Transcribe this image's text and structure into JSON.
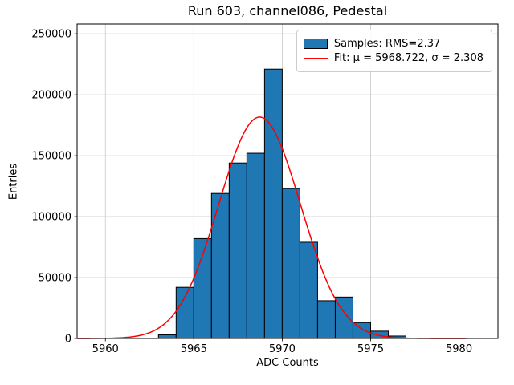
{
  "title": "Run 603, channel086, Pedestal",
  "chart_data": {
    "type": "bar",
    "subtype": "histogram",
    "title": "Run 603, channel086, Pedestal",
    "xlabel": "ADC Counts",
    "ylabel": "Entries",
    "xlim": [
      5958.4,
      5982.2
    ],
    "ylim": [
      0,
      258000
    ],
    "xticks": [
      5960,
      5965,
      5970,
      5975,
      5980
    ],
    "yticks": [
      0,
      50000,
      100000,
      150000,
      200000,
      250000
    ],
    "grid": true,
    "grid_color": "#c8c8c8",
    "bin_width": 1,
    "bins": [
      5963,
      5964,
      5965,
      5966,
      5967,
      5968,
      5969,
      5970,
      5971,
      5972,
      5973,
      5974,
      5975,
      5976
    ],
    "counts": [
      3000,
      42000,
      82000,
      119000,
      144000,
      152000,
      221000,
      123000,
      79000,
      31000,
      34000,
      13000,
      6000,
      2000
    ],
    "bar_color": "#1f77b4",
    "bar_edge_color": "#000000",
    "fit": {
      "mu": 5968.722,
      "sigma": 2.308,
      "rms": 2.37,
      "amplitude": 181700,
      "color": "#ff0000",
      "x_range": [
        5958.4,
        5980.5
      ]
    },
    "legend": {
      "position": "upper right",
      "entries": [
        {
          "type": "patch",
          "color": "#1f77b4",
          "label": "Samples: RMS=2.37"
        },
        {
          "type": "line",
          "color": "#ff0000",
          "label": "Fit: μ = 5968.722, σ = 2.308"
        }
      ]
    }
  }
}
